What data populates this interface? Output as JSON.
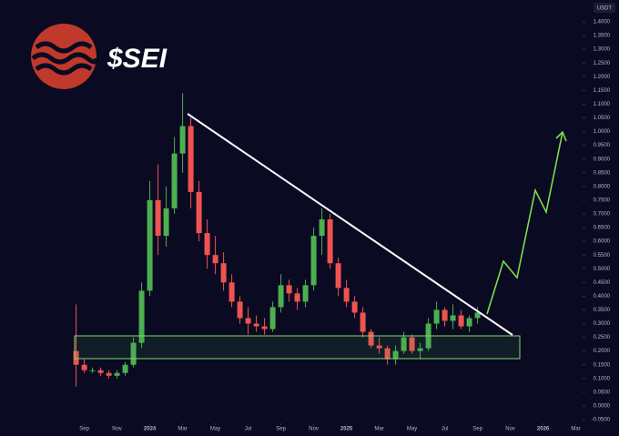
{
  "chart_data": {
    "type": "candlestick",
    "title": "$SEI",
    "currency": "USDT",
    "up_color": "#4caf50",
    "down_color": "#ef5350",
    "x": [
      -0.5,
      0,
      0.5,
      1,
      1.5,
      2,
      2.5,
      3,
      3.5,
      4,
      4.5,
      5,
      5.5,
      6,
      6.5,
      7,
      7.5,
      8,
      8.5,
      9,
      9.5,
      10,
      10.5,
      11,
      11.5,
      12,
      12.5,
      13,
      13.5,
      14,
      14.5,
      15,
      15.5,
      16,
      16.5,
      17,
      17.5,
      18,
      18.5,
      19,
      19.5,
      20,
      20.5,
      21,
      21.5,
      22,
      22.5,
      23,
      23.5,
      24
    ],
    "open": [
      0.2,
      0.15,
      0.13,
      0.13,
      0.12,
      0.11,
      0.12,
      0.15,
      0.23,
      0.42,
      0.75,
      0.62,
      0.72,
      0.92,
      1.02,
      0.78,
      0.63,
      0.55,
      0.52,
      0.45,
      0.38,
      0.32,
      0.3,
      0.29,
      0.28,
      0.36,
      0.44,
      0.41,
      0.38,
      0.44,
      0.62,
      0.68,
      0.52,
      0.43,
      0.38,
      0.34,
      0.27,
      0.22,
      0.21,
      0.17,
      0.2,
      0.25,
      0.2,
      0.21,
      0.3,
      0.35,
      0.31,
      0.33,
      0.29,
      0.32
    ],
    "high": [
      0.37,
      0.17,
      0.14,
      0.14,
      0.13,
      0.13,
      0.16,
      0.25,
      0.45,
      0.82,
      0.88,
      0.8,
      0.98,
      1.14,
      1.05,
      0.82,
      0.68,
      0.62,
      0.56,
      0.48,
      0.4,
      0.36,
      0.33,
      0.32,
      0.38,
      0.48,
      0.46,
      0.43,
      0.46,
      0.65,
      0.72,
      0.7,
      0.54,
      0.46,
      0.4,
      0.36,
      0.28,
      0.25,
      0.22,
      0.22,
      0.27,
      0.26,
      0.23,
      0.32,
      0.38,
      0.36,
      0.37,
      0.35,
      0.33,
      0.36
    ],
    "low": [
      0.07,
      0.12,
      0.12,
      0.11,
      0.1,
      0.1,
      0.11,
      0.14,
      0.21,
      0.4,
      0.55,
      0.58,
      0.7,
      0.85,
      0.72,
      0.6,
      0.5,
      0.48,
      0.42,
      0.36,
      0.3,
      0.26,
      0.27,
      0.26,
      0.27,
      0.34,
      0.38,
      0.35,
      0.36,
      0.42,
      0.55,
      0.5,
      0.4,
      0.36,
      0.32,
      0.25,
      0.21,
      0.19,
      0.15,
      0.15,
      0.19,
      0.19,
      0.17,
      0.2,
      0.28,
      0.29,
      0.28,
      0.28,
      0.27,
      0.3
    ],
    "close": [
      0.15,
      0.13,
      0.13,
      0.12,
      0.11,
      0.12,
      0.15,
      0.23,
      0.42,
      0.75,
      0.62,
      0.72,
      0.92,
      1.02,
      0.78,
      0.63,
      0.55,
      0.52,
      0.45,
      0.38,
      0.32,
      0.3,
      0.29,
      0.28,
      0.36,
      0.44,
      0.41,
      0.38,
      0.44,
      0.62,
      0.68,
      0.52,
      0.43,
      0.38,
      0.34,
      0.27,
      0.22,
      0.21,
      0.17,
      0.2,
      0.25,
      0.2,
      0.21,
      0.3,
      0.35,
      0.31,
      0.33,
      0.29,
      0.32,
      0.34
    ],
    "xlim": [
      -0.7,
      30.3
    ],
    "xticks": [
      {
        "value": 0,
        "label": "Sep"
      },
      {
        "value": 2,
        "label": "Nov"
      },
      {
        "value": 4,
        "label": "2024"
      },
      {
        "value": 6,
        "label": "Mar"
      },
      {
        "value": 8,
        "label": "May"
      },
      {
        "value": 10,
        "label": "Jul"
      },
      {
        "value": 12,
        "label": "Sep"
      },
      {
        "value": 14,
        "label": "Nov"
      },
      {
        "value": 16,
        "label": "2025"
      },
      {
        "value": 18,
        "label": "Mar"
      },
      {
        "value": 20,
        "label": "May"
      },
      {
        "value": 22,
        "label": "Jul"
      },
      {
        "value": 24,
        "label": "Sep"
      },
      {
        "value": 26,
        "label": "Nov"
      },
      {
        "value": 28,
        "label": "2026"
      },
      {
        "value": 30,
        "label": "Mar"
      }
    ],
    "ylim": [
      -0.05,
      1.4
    ],
    "yticks": [
      {
        "value": 1.4,
        "label": "1.4000"
      },
      {
        "value": 1.35,
        "label": "1.3500"
      },
      {
        "value": 1.3,
        "label": "1.3000"
      },
      {
        "value": 1.25,
        "label": "1.2500"
      },
      {
        "value": 1.2,
        "label": "1.2000"
      },
      {
        "value": 1.15,
        "label": "1.1500"
      },
      {
        "value": 1.1,
        "label": "1.1000"
      },
      {
        "value": 1.05,
        "label": "1.0500"
      },
      {
        "value": 1,
        "label": "1.0000"
      },
      {
        "value": 0.95,
        "label": "0.9500"
      },
      {
        "value": 0.9,
        "label": "0.9000"
      },
      {
        "value": 0.85,
        "label": "0.8500"
      },
      {
        "value": 0.8,
        "label": "0.8000"
      },
      {
        "value": 0.75,
        "label": "0.7500"
      },
      {
        "value": 0.7,
        "label": "0.7000"
      },
      {
        "value": 0.65,
        "label": "0.6500"
      },
      {
        "value": 0.6,
        "label": "0.6000"
      },
      {
        "value": 0.55,
        "label": "0.5500"
      },
      {
        "value": 0.5,
        "label": "0.5000"
      },
      {
        "value": 0.45,
        "label": "0.4500"
      },
      {
        "value": 0.4,
        "label": "0.4000"
      },
      {
        "value": 0.35,
        "label": "0.3500"
      },
      {
        "value": 0.3,
        "label": "0.3000"
      },
      {
        "value": 0.25,
        "label": "0.2500"
      },
      {
        "value": 0.2,
        "label": "0.2000"
      },
      {
        "value": 0.15,
        "label": "0.1500"
      },
      {
        "value": 0.1,
        "label": "0.1000"
      },
      {
        "value": 0.05,
        "label": "0.0500"
      },
      {
        "value": 0,
        "label": "0.0000"
      },
      {
        "value": -0.05,
        "label": "-0.0500"
      }
    ]
  }
}
